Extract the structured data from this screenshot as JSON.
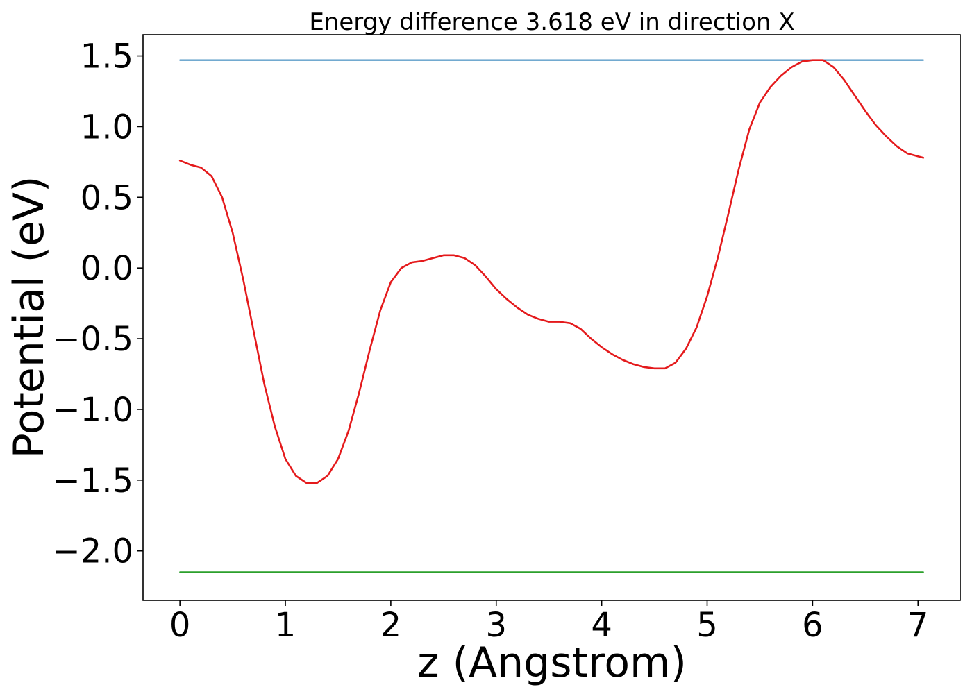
{
  "chart_data": {
    "type": "line",
    "title": "Energy difference 3.618 eV in direction X",
    "xlabel": "z (Angstrom)",
    "ylabel": "Potential (eV)",
    "xlim": [
      -0.35,
      7.4
    ],
    "ylim": [
      -2.35,
      1.65
    ],
    "grid": false,
    "xticks": [
      0,
      1,
      2,
      3,
      4,
      5,
      6,
      7
    ],
    "xtick_labels": [
      "0",
      "1",
      "2",
      "3",
      "4",
      "5",
      "6",
      "7"
    ],
    "yticks": [
      1.5,
      1.0,
      0.5,
      0.0,
      -0.5,
      -1.0,
      -1.5,
      -2.0
    ],
    "ytick_labels": [
      "1.5",
      "1.0",
      "0.5",
      "0.0",
      "−0.5",
      "−1.0",
      "−1.5",
      "−2.0"
    ],
    "series": [
      {
        "color": "#1f77b4",
        "x": [
          0,
          7.05
        ],
        "y": [
          1.47,
          1.47
        ]
      },
      {
        "color": "#2ca02c",
        "x": [
          0,
          7.05
        ],
        "y": [
          -2.15,
          -2.15
        ]
      },
      {
        "color": "#e41a1c",
        "x": [
          0,
          0.1,
          0.2,
          0.3,
          0.4,
          0.5,
          0.6,
          0.7,
          0.8,
          0.9,
          1.0,
          1.1,
          1.2,
          1.3,
          1.4,
          1.5,
          1.6,
          1.7,
          1.8,
          1.9,
          2.0,
          2.1,
          2.2,
          2.3,
          2.4,
          2.5,
          2.6,
          2.7,
          2.8,
          2.9,
          3.0,
          3.1,
          3.2,
          3.3,
          3.4,
          3.5,
          3.6,
          3.7,
          3.8,
          3.9,
          4.0,
          4.1,
          4.2,
          4.3,
          4.4,
          4.5,
          4.6,
          4.7,
          4.8,
          4.9,
          5.0,
          5.1,
          5.2,
          5.3,
          5.4,
          5.5,
          5.6,
          5.7,
          5.8,
          5.9,
          6.0,
          6.1,
          6.2,
          6.3,
          6.4,
          6.5,
          6.6,
          6.7,
          6.8,
          6.9,
          7.0,
          7.05
        ],
        "y": [
          0.76,
          0.73,
          0.71,
          0.65,
          0.5,
          0.25,
          -0.08,
          -0.45,
          -0.82,
          -1.12,
          -1.35,
          -1.47,
          -1.52,
          -1.52,
          -1.47,
          -1.35,
          -1.15,
          -0.88,
          -0.58,
          -0.3,
          -0.1,
          0.0,
          0.04,
          0.05,
          0.07,
          0.09,
          0.09,
          0.07,
          0.02,
          -0.06,
          -0.15,
          -0.22,
          -0.28,
          -0.33,
          -0.36,
          -0.38,
          -0.38,
          -0.39,
          -0.43,
          -0.5,
          -0.56,
          -0.61,
          -0.65,
          -0.68,
          -0.7,
          -0.71,
          -0.71,
          -0.67,
          -0.57,
          -0.42,
          -0.2,
          0.07,
          0.38,
          0.7,
          0.98,
          1.17,
          1.28,
          1.36,
          1.42,
          1.46,
          1.47,
          1.47,
          1.42,
          1.33,
          1.22,
          1.11,
          1.01,
          0.93,
          0.86,
          0.81,
          0.79,
          0.78
        ]
      }
    ]
  }
}
